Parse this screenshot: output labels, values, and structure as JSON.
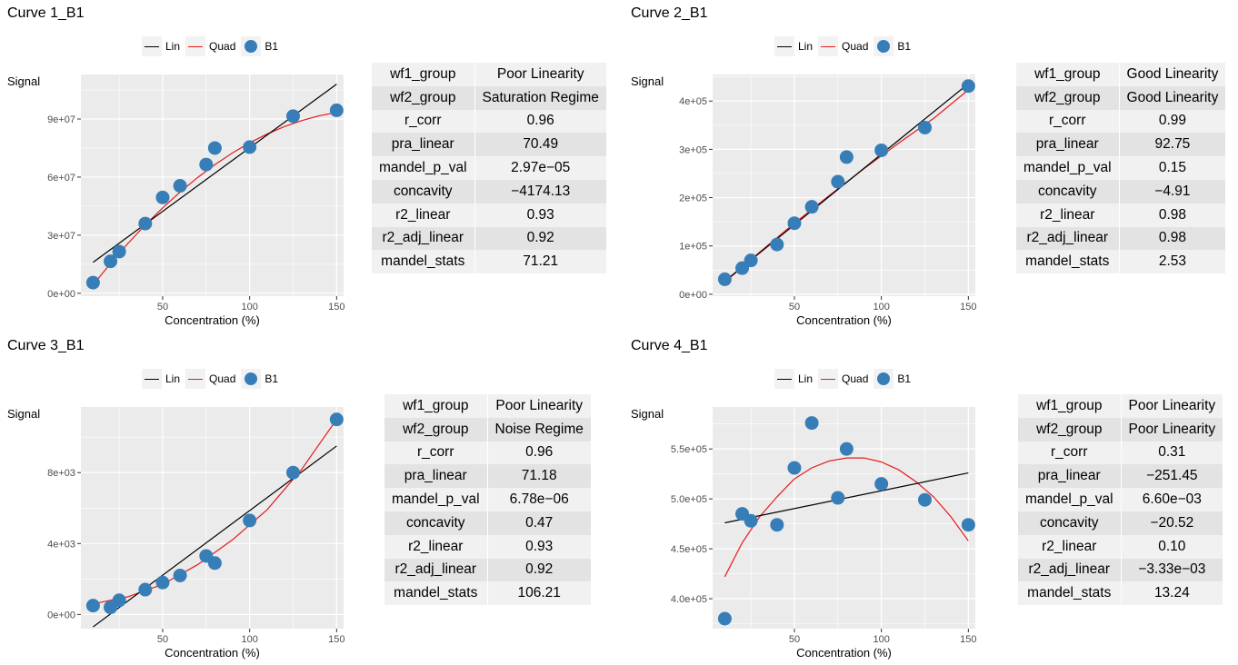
{
  "legend": {
    "lin": "Lin",
    "quad": "Quad",
    "points": "B1"
  },
  "colors": {
    "lin": "#000000",
    "quad": "#e41a1c",
    "points": "#377eb8",
    "panel_bg": "#ebebeb",
    "grid": "#ffffff"
  },
  "chart_data": [
    {
      "type": "scatter",
      "title": "Curve 1_B1",
      "xlabel": "Concentration (%)",
      "ylabel": "Signal",
      "xlim": [
        3,
        154
      ],
      "ylim": [
        -1500000,
        113000000
      ],
      "x_ticks": [
        50,
        100,
        150
      ],
      "x_tick_labels": [
        "50",
        "100",
        "150"
      ],
      "y_ticks": [
        0,
        30000000,
        60000000,
        90000000
      ],
      "y_tick_labels": [
        "0e+00",
        "3e+07",
        "6e+07",
        "9e+07"
      ],
      "grid": true,
      "points": {
        "x": [
          10,
          20,
          25,
          40,
          50,
          60,
          75,
          80,
          100,
          125,
          150
        ],
        "y": [
          5500000,
          16500000,
          21500000,
          36000000,
          49500000,
          55500000,
          66500000,
          75000000,
          75500000,
          91500000,
          94500000
        ]
      },
      "lin_line": {
        "x": [
          10,
          150
        ],
        "y": [
          16000000,
          108000000
        ]
      },
      "quad_curve": {
        "x": [
          10,
          20,
          30,
          40,
          50,
          60,
          70,
          80,
          90,
          100,
          110,
          120,
          130,
          140,
          150
        ],
        "y": [
          4300000,
          15400000,
          25700000,
          35300000,
          44100000,
          52300000,
          59700000,
          66400000,
          72400000,
          77700000,
          82200000,
          86100000,
          89200000,
          91700000,
          93400000
        ]
      },
      "stats": [
        [
          "wf1_group",
          "Poor Linearity"
        ],
        [
          "wf2_group",
          "Saturation Regime"
        ],
        [
          "r_corr",
          "0.96"
        ],
        [
          "pra_linear",
          "70.49"
        ],
        [
          "mandel_p_val",
          "2.97e−05"
        ],
        [
          "concavity",
          "−4174.13"
        ],
        [
          "r2_linear",
          "0.93"
        ],
        [
          "r2_adj_linear",
          "0.92"
        ],
        [
          "mandel_stats",
          "71.21"
        ]
      ]
    },
    {
      "type": "scatter",
      "title": "Curve 2_B1",
      "xlabel": "Concentration (%)",
      "ylabel": "Signal",
      "xlim": [
        3,
        154
      ],
      "ylim": [
        -4000,
        455000
      ],
      "x_ticks": [
        50,
        100,
        150
      ],
      "x_tick_labels": [
        "50",
        "100",
        "150"
      ],
      "y_ticks": [
        0,
        100000,
        200000,
        300000,
        400000
      ],
      "y_tick_labels": [
        "0e+00",
        "1e+05",
        "2e+05",
        "3e+05",
        "4e+05"
      ],
      "grid": true,
      "points": {
        "x": [
          10,
          20,
          25,
          40,
          50,
          60,
          75,
          80,
          100,
          125,
          150
        ],
        "y": [
          31000,
          54000,
          70000,
          103000,
          147000,
          181000,
          233000,
          284000,
          298000,
          345000,
          431000
        ]
      },
      "lin_line": {
        "x": [
          10,
          150
        ],
        "y": [
          27000,
          436000
        ]
      },
      "quad_curve": {
        "x": [
          10,
          30,
          50,
          70,
          90,
          110,
          130,
          150
        ],
        "y": [
          25000,
          87000,
          147000,
          204000,
          260000,
          313000,
          364000,
          423000
        ]
      },
      "stats": [
        [
          "wf1_group",
          "Good Linearity"
        ],
        [
          "wf2_group",
          "Good Linearity"
        ],
        [
          "r_corr",
          "0.99"
        ],
        [
          "pra_linear",
          "92.75"
        ],
        [
          "mandel_p_val",
          "0.15"
        ],
        [
          "concavity",
          "−4.91"
        ],
        [
          "r2_linear",
          "0.98"
        ],
        [
          "r2_adj_linear",
          "0.98"
        ],
        [
          "mandel_stats",
          "2.53"
        ]
      ]
    },
    {
      "type": "scatter",
      "title": "Curve 3_B1",
      "xlabel": "Concentration (%)",
      "ylabel": "Signal",
      "xlim": [
        3,
        154
      ],
      "ylim": [
        -800,
        11700
      ],
      "x_ticks": [
        50,
        100,
        150
      ],
      "x_tick_labels": [
        "50",
        "100",
        "150"
      ],
      "y_ticks": [
        0,
        4000,
        8000
      ],
      "y_tick_labels": [
        "0e+00",
        "4e+03",
        "8e+03"
      ],
      "grid": true,
      "points": {
        "x": [
          10,
          20,
          25,
          40,
          50,
          60,
          75,
          80,
          100,
          125,
          150
        ],
        "y": [
          500,
          400,
          800,
          1400,
          1800,
          2200,
          3300,
          2900,
          5300,
          8000,
          11000
        ]
      },
      "lin_line": {
        "x": [
          10,
          150
        ],
        "y": [
          -700,
          9500
        ]
      },
      "quad_curve": {
        "x": [
          10,
          30,
          50,
          70,
          90,
          110,
          130,
          150
        ],
        "y": [
          600,
          1000,
          1700,
          2800,
          4200,
          5900,
          8200,
          11000
        ]
      },
      "stats": [
        [
          "wf1_group",
          "Poor Linearity"
        ],
        [
          "wf2_group",
          "Noise Regime"
        ],
        [
          "r_corr",
          "0.96"
        ],
        [
          "pra_linear",
          "71.18"
        ],
        [
          "mandel_p_val",
          "6.78e−06"
        ],
        [
          "concavity",
          "0.47"
        ],
        [
          "r2_linear",
          "0.93"
        ],
        [
          "r2_adj_linear",
          "0.92"
        ],
        [
          "mandel_stats",
          "106.21"
        ]
      ]
    },
    {
      "type": "scatter",
      "title": "Curve 4_B1",
      "xlabel": "Concentration (%)",
      "ylabel": "Signal",
      "xlim": [
        3,
        154
      ],
      "ylim": [
        370000,
        592000
      ],
      "x_ticks": [
        50,
        100,
        150
      ],
      "x_tick_labels": [
        "50",
        "100",
        "150"
      ],
      "y_ticks": [
        400000,
        450000,
        500000,
        550000
      ],
      "y_tick_labels": [
        "4.0e+05",
        "4.5e+05",
        "5.0e+05",
        "5.5e+05"
      ],
      "grid": true,
      "points": {
        "x": [
          10,
          20,
          25,
          40,
          50,
          60,
          75,
          80,
          100,
          125,
          150
        ],
        "y": [
          380000,
          485000,
          478000,
          474000,
          531000,
          576000,
          501000,
          550000,
          515000,
          499000,
          474000
        ]
      },
      "lin_line": {
        "x": [
          10,
          150
        ],
        "y": [
          476000,
          526000
        ]
      },
      "quad_curve": {
        "x": [
          10,
          20,
          30,
          40,
          50,
          60,
          70,
          80,
          90,
          100,
          110,
          120,
          130,
          140,
          150
        ],
        "y": [
          422000,
          456000,
          482000,
          502000,
          520000,
          531000,
          538000,
          541000,
          541000,
          537000,
          529000,
          517000,
          502000,
          482000,
          458000
        ]
      },
      "stats": [
        [
          "wf1_group",
          "Poor Linearity"
        ],
        [
          "wf2_group",
          "Poor Linearity"
        ],
        [
          "r_corr",
          "0.31"
        ],
        [
          "pra_linear",
          "−251.45"
        ],
        [
          "mandel_p_val",
          "6.60e−03"
        ],
        [
          "concavity",
          "−20.52"
        ],
        [
          "r2_linear",
          "0.10"
        ],
        [
          "r2_adj_linear",
          "−3.33e−03"
        ],
        [
          "mandel_stats",
          "13.24"
        ]
      ]
    }
  ]
}
